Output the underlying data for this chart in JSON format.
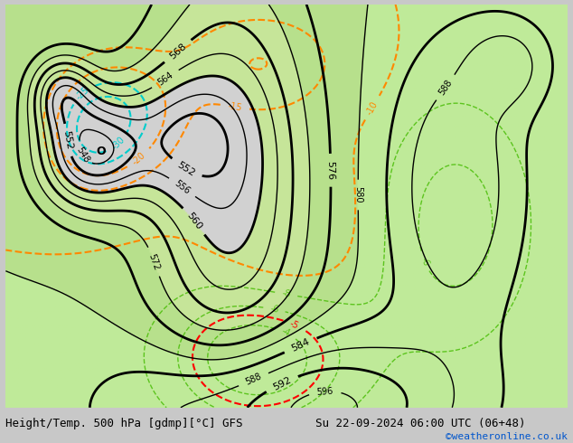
{
  "title_left": "Height/Temp. 500 hPa [gdmp][°C] GFS",
  "title_right": "Su 22-09-2024 06:00 UTC (06+48)",
  "credit": "©weatheronline.co.uk",
  "height_contour_color": "#000000",
  "temp_orange_color": "#ff8800",
  "temp_green_color": "#44bb00",
  "temp_cyan_color": "#00cccc",
  "temp_red_color": "#ff0000",
  "contour_linewidth_major": 2.0,
  "contour_linewidth_minor": 1.0
}
